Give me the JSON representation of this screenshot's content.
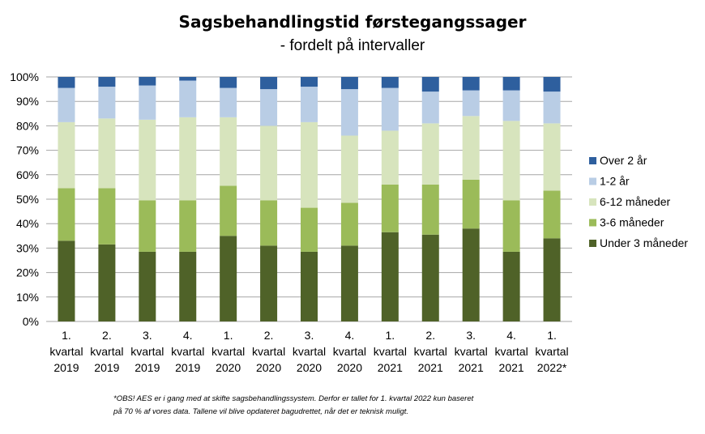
{
  "chart_data": {
    "type": "bar",
    "stacked": true,
    "normalized": true,
    "title": "Sagsbehandlingstid førstegangssager",
    "subtitle": "- fordelt på intervaller",
    "categories": [
      [
        "1.",
        "kvartal",
        "2019"
      ],
      [
        "2.",
        "kvartal",
        "2019"
      ],
      [
        "3.",
        "kvartal",
        "2019"
      ],
      [
        "4.",
        "kvartal",
        "2019"
      ],
      [
        "1.",
        "kvartal",
        "2020"
      ],
      [
        "2.",
        "kvartal",
        "2020"
      ],
      [
        "3.",
        "kvartal",
        "2020"
      ],
      [
        "4.",
        "kvartal",
        "2020"
      ],
      [
        "1.",
        "kvartal",
        "2021"
      ],
      [
        "2.",
        "kvartal",
        "2021"
      ],
      [
        "3.",
        "kvartal",
        "2021"
      ],
      [
        "4.",
        "kvartal",
        "2021"
      ],
      [
        "1.",
        "kvartal",
        "2022*"
      ]
    ],
    "y_ticks": [
      "0%",
      "10%",
      "20%",
      "30%",
      "40%",
      "50%",
      "60%",
      "70%",
      "80%",
      "90%",
      "100%"
    ],
    "ylim": [
      0,
      100
    ],
    "grid": true,
    "legend_position": "right",
    "series": [
      {
        "name": "Under 3 måneder",
        "color": "#4f6228",
        "values": [
          33,
          31.5,
          28.5,
          28.5,
          35,
          31,
          28.5,
          31,
          36.5,
          35.5,
          38,
          28.5,
          34
        ]
      },
      {
        "name": "3-6 måneder",
        "color": "#9bbb59",
        "values": [
          21.5,
          23,
          21,
          21,
          20.5,
          18.5,
          18,
          17.5,
          19.5,
          20.5,
          20,
          21,
          19.5
        ]
      },
      {
        "name": "6-12 måneder",
        "color": "#d7e4bd",
        "values": [
          27,
          28.5,
          33,
          34,
          28,
          30.5,
          35,
          27.5,
          22,
          25,
          26,
          32.5,
          27.5
        ]
      },
      {
        "name": "1-2 år",
        "color": "#b9cde5",
        "values": [
          14,
          13,
          14,
          15,
          12,
          15,
          14.5,
          19,
          17.5,
          13,
          10.5,
          12.5,
          13
        ]
      },
      {
        "name": "Over 2 år",
        "color": "#2e5f9e",
        "values": [
          4.5,
          4,
          3.5,
          1.5,
          4.5,
          5,
          4,
          5,
          4.5,
          6,
          5.5,
          5.5,
          6
        ]
      }
    ]
  },
  "footnote": {
    "line1": "*OBS! AES er i gang med at skifte sagsbehandlingssystem. Derfor er tallet for 1. kvartal 2022 kun baseret",
    "line2": "på 70 % af vores data. Tallene vil blive opdateret bagudrettet, når det er teknisk muligt."
  }
}
